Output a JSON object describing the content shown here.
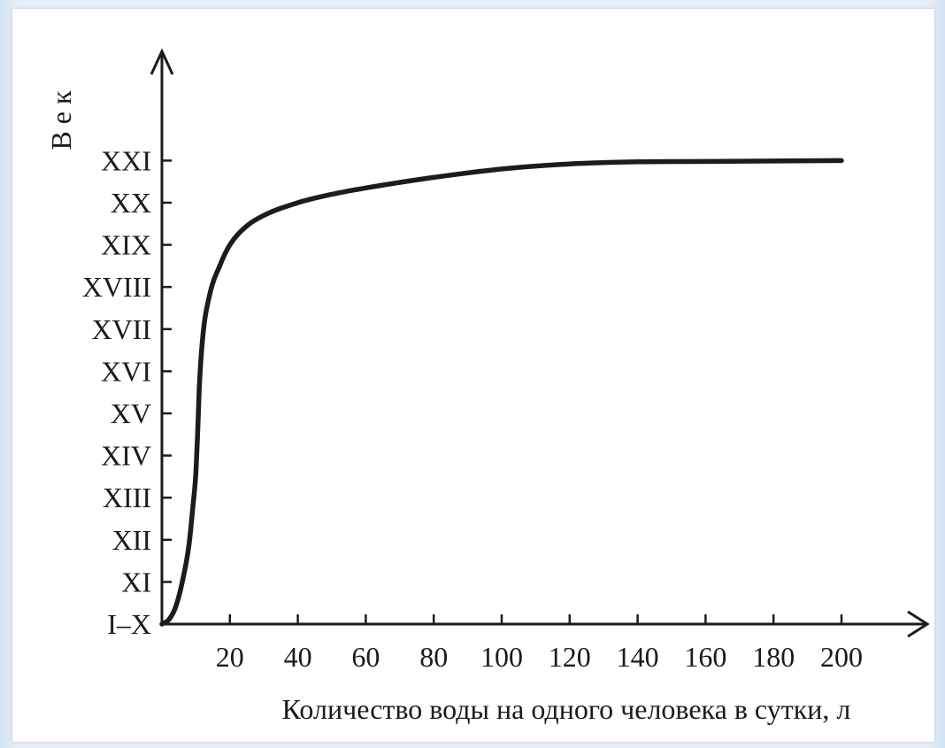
{
  "chart_data": {
    "type": "line",
    "xlabel": "Количество воды на одного человека в сутки, л",
    "ylabel": "В е к",
    "x_ticks": [
      20,
      40,
      60,
      80,
      100,
      120,
      140,
      160,
      180,
      200
    ],
    "y_ticks": [
      "I–X",
      "XI",
      "XII",
      "XIII",
      "XIV",
      "XV",
      "XVI",
      "XVII",
      "XVIII",
      "XIX",
      "XX",
      "XXI"
    ],
    "xlim": [
      0,
      210
    ],
    "ylim": [
      "I–X",
      "XXI"
    ],
    "y_index_range": [
      0,
      11
    ],
    "grid": false,
    "legend": "none",
    "series": [
      {
        "x": [
          0,
          2,
          4,
          6,
          8,
          9,
          10,
          10.5,
          11,
          12,
          14,
          17,
          20,
          25,
          30,
          40,
          50,
          60,
          80,
          100,
          120,
          140,
          160,
          180,
          200
        ],
        "y": [
          0,
          0.1,
          0.4,
          1,
          1.9,
          2.7,
          3.6,
          4.5,
          5.6,
          6.8,
          7.8,
          8.5,
          9,
          9.45,
          9.7,
          10,
          10.2,
          10.35,
          10.6,
          10.8,
          10.92,
          10.97,
          10.98,
          10.99,
          11
        ]
      }
    ],
    "colors": {
      "curve": "#1c1c1c",
      "axis": "#1c1c1c"
    }
  }
}
